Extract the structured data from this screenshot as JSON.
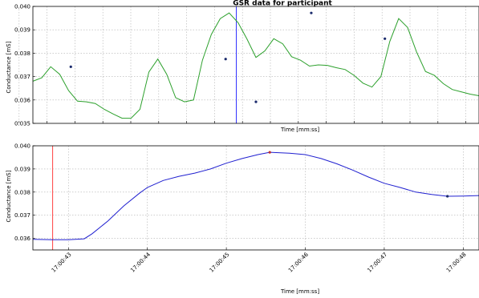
{
  "chart_data": [
    {
      "type": "line",
      "title": "GSR data for participant",
      "xlabel": "Time [mm:ss]",
      "ylabel": "Conductance [mS]",
      "ylim": [
        0.035,
        0.04
      ],
      "yticks": [
        "0.035",
        "0.036",
        "0.037",
        "0.038",
        "0.039",
        "0.040"
      ],
      "grid": true,
      "line_color": "#2ca02c",
      "series": [
        {
          "x": [
            0,
            2,
            4,
            6,
            8,
            10,
            12,
            14,
            16,
            18,
            20,
            22,
            24,
            26,
            28,
            30,
            32,
            34,
            36,
            38,
            40,
            42,
            44,
            46,
            48,
            50,
            52,
            54,
            56,
            58,
            60,
            62,
            64,
            66,
            68,
            70,
            72,
            74,
            76,
            78,
            80,
            82,
            84,
            86,
            88,
            90,
            92,
            94,
            96,
            98,
            100
          ],
          "y": [
            0.0368,
            0.03695,
            0.03742,
            0.0371,
            0.0364,
            0.03595,
            0.03592,
            0.03585,
            0.0356,
            0.0354,
            0.03522,
            0.03522,
            0.0356,
            0.0372,
            0.03775,
            0.0371,
            0.0361,
            0.03592,
            0.036,
            0.0377,
            0.0388,
            0.03948,
            0.03972,
            0.0393,
            0.0386,
            0.03782,
            0.0381,
            0.03862,
            0.0384,
            0.03785,
            0.0377,
            0.03745,
            0.0375,
            0.03748,
            0.03738,
            0.0373,
            0.03705,
            0.03672,
            0.03655,
            0.037,
            0.0385,
            0.03948,
            0.0391,
            0.03805,
            0.03722,
            0.03705,
            0.0367,
            0.03645,
            0.03635,
            0.03625,
            0.03618
          ]
        }
      ],
      "markers_y": [
        0.03742,
        0.03775,
        0.03592,
        0.03972,
        0.03862,
        0.03948
      ],
      "marker_color": "#1a2a6c",
      "cursor_color": "#3030ff"
    },
    {
      "type": "line",
      "xlabel": "Time [mm:ss]",
      "ylabel": "Conductance [mS]",
      "ylim": [
        0.0355,
        0.04
      ],
      "yticks": [
        "0.036",
        "0.037",
        "0.038",
        "0.039",
        "0.040"
      ],
      "xticks": [
        "17:00:43",
        "17:00:44",
        "17:00:45",
        "17:00:46",
        "17:00:47",
        "17:00:48"
      ],
      "grid": true,
      "line_color": "#2020d0",
      "series": [
        {
          "x": [
            42.55,
            42.8,
            43.0,
            43.2,
            43.3,
            43.5,
            43.7,
            43.9,
            44.0,
            44.2,
            44.4,
            44.6,
            44.8,
            45.0,
            45.2,
            45.4,
            45.55,
            45.8,
            46.0,
            46.2,
            46.4,
            46.6,
            46.8,
            47.0,
            47.2,
            47.4,
            47.6,
            47.8,
            48.0,
            48.2
          ],
          "y": [
            0.03596,
            0.03594,
            0.03594,
            0.03598,
            0.0362,
            0.03675,
            0.0374,
            0.03795,
            0.0382,
            0.0385,
            0.03868,
            0.03882,
            0.039,
            0.03925,
            0.03945,
            0.03962,
            0.03972,
            0.03968,
            0.03962,
            0.03945,
            0.03922,
            0.03895,
            0.03865,
            0.03838,
            0.0382,
            0.038,
            0.0379,
            0.03782,
            0.03783,
            0.03785
          ]
        }
      ],
      "markers_y": [
        0.03972,
        0.03782
      ],
      "marker_color": "#1a2a6c",
      "cursor_color": "#ff4040"
    }
  ]
}
